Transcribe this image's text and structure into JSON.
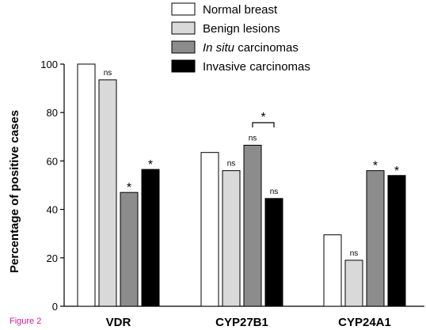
{
  "figure_label": "Figure 2",
  "chart_data": {
    "type": "bar",
    "categories": [
      "VDR",
      "CYP27B1",
      "CYP24A1"
    ],
    "series": [
      {
        "name": "Normal breast",
        "values": [
          100,
          63.5,
          29.5
        ],
        "color": "#ffffff"
      },
      {
        "name": "Benign lesions",
        "values": [
          93.5,
          56,
          19
        ],
        "color": "#d9d9d9"
      },
      {
        "name": "In situ carcinomas",
        "name_italic_part": "In situ",
        "name_rest": " carcinomas",
        "values": [
          47,
          66.5,
          56
        ],
        "color": "#8c8c8c"
      },
      {
        "name": "Invasive carcinomas",
        "values": [
          56.5,
          44.5,
          54
        ],
        "color": "#000000"
      }
    ],
    "annotations": [
      [
        "",
        "ns",
        "*",
        "*"
      ],
      [
        "",
        "ns",
        "ns",
        "ns"
      ],
      [
        "",
        "ns",
        "*",
        "*"
      ]
    ],
    "bracket": {
      "category": "CYP27B1",
      "from_series": 2,
      "to_series": 3,
      "label": "*"
    },
    "ylabel": "Percentage of positive cases",
    "xlabel": "",
    "ylim": [
      0,
      100
    ],
    "yticks": [
      0,
      20,
      40,
      60,
      80,
      100
    ],
    "legend_position": "top-center",
    "grid": false
  }
}
